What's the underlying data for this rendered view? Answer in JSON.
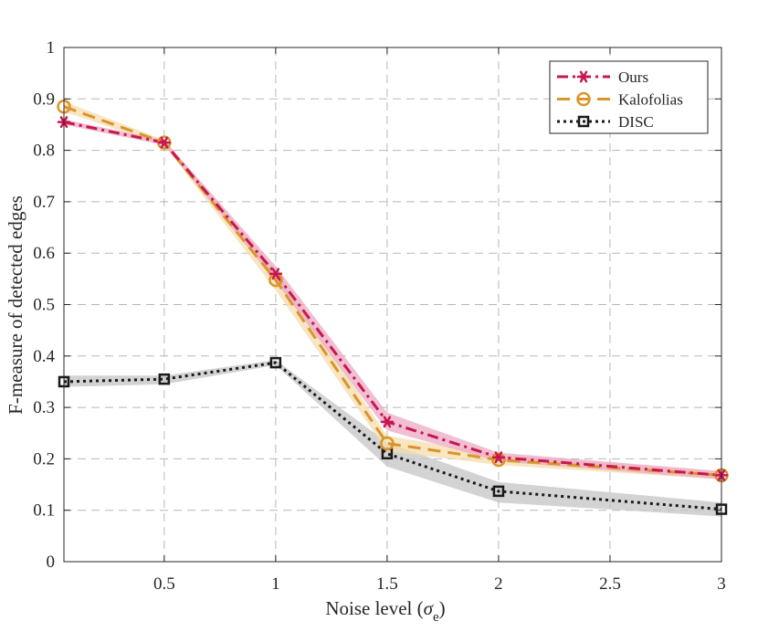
{
  "chart_data": {
    "type": "line",
    "title": "",
    "xlabel_prefix": "Noise level (",
    "xlabel_symbol": "σ",
    "xlabel_subscript": "e",
    "xlabel_suffix": ")",
    "ylabel": "F-measure of detected edges",
    "xlim": [
      0.05,
      3
    ],
    "ylim": [
      0,
      1
    ],
    "x_ticks": [
      0.5,
      1,
      1.5,
      2,
      2.5,
      3
    ],
    "x_tick_labels": [
      "0.5",
      "1",
      "1.5",
      "2",
      "2.5",
      "3"
    ],
    "y_ticks": [
      0,
      0.1,
      0.2,
      0.3,
      0.4,
      0.5,
      0.6,
      0.7,
      0.8,
      0.9,
      1
    ],
    "y_tick_labels": [
      "0",
      "0.1",
      "0.2",
      "0.3",
      "0.4",
      "0.5",
      "0.6",
      "0.7",
      "0.8",
      "0.9",
      "1"
    ],
    "grid": true,
    "legend_position": "top-right",
    "x": [
      0.05,
      0.5,
      1,
      1.5,
      2,
      3
    ],
    "series": [
      {
        "name": "Kalofolias",
        "color": "#d9952a",
        "band_color": "#f5dcae",
        "marker": "circle",
        "line_style": "dashed",
        "values": [
          0.885,
          0.815,
          0.548,
          0.23,
          0.198,
          0.168
        ],
        "band_lower": [
          0.875,
          0.81,
          0.528,
          0.215,
          0.188,
          0.16
        ],
        "band_upper": [
          0.895,
          0.82,
          0.568,
          0.245,
          0.208,
          0.176
        ]
      },
      {
        "name": "Ours",
        "color": "#c8174f",
        "band_color": "#ebaac4",
        "marker": "asterisk",
        "line_style": "dash-dot",
        "values": [
          0.855,
          0.815,
          0.56,
          0.272,
          0.203,
          0.168
        ],
        "band_lower": [
          0.85,
          0.81,
          0.545,
          0.255,
          0.195,
          0.16
        ],
        "band_upper": [
          0.86,
          0.82,
          0.575,
          0.29,
          0.212,
          0.176
        ]
      },
      {
        "name": "DISC",
        "color": "#1a1a1a",
        "band_color": "#c4c4c4",
        "marker": "square",
        "line_style": "dotted",
        "values": [
          0.35,
          0.355,
          0.387,
          0.21,
          0.137,
          0.102
        ],
        "band_lower": [
          0.34,
          0.345,
          0.382,
          0.185,
          0.115,
          0.088
        ],
        "band_upper": [
          0.362,
          0.362,
          0.392,
          0.232,
          0.155,
          0.115
        ]
      }
    ],
    "legend_order": [
      "Ours",
      "Kalofolias",
      "DISC"
    ]
  }
}
